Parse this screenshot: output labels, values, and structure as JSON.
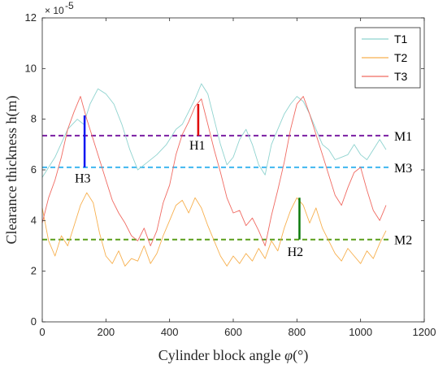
{
  "chart_data": {
    "type": "line",
    "xlabel_text": "Cylinder block angle ",
    "xlabel_symbol": "φ",
    "xlabel_unit": "(°)",
    "ylabel": "Clearance thickness h(m)",
    "y_exponent_base": "× 10",
    "y_exponent_power": "-5",
    "xlim": [
      0,
      1200
    ],
    "ylim": [
      0,
      12
    ],
    "xticks": [
      "0",
      "200",
      "400",
      "600",
      "800",
      "1000",
      "1200"
    ],
    "yticks": [
      "0",
      "2",
      "4",
      "6",
      "8",
      "10",
      "12"
    ],
    "grid": false,
    "legend_placement": "top-right",
    "series": [
      {
        "name": "T1",
        "color": "#8fd3cf",
        "x": [
          0,
          40,
          80,
          110,
          130,
          150,
          175,
          200,
          225,
          250,
          275,
          300,
          330,
          360,
          390,
          420,
          440,
          460,
          480,
          500,
          520,
          540,
          560,
          580,
          600,
          620,
          640,
          660,
          680,
          700,
          720,
          740,
          760,
          780,
          800,
          820,
          840,
          860,
          880,
          900,
          920,
          940,
          960,
          980,
          1000,
          1020,
          1040,
          1060,
          1080
        ],
        "y": [
          5.7,
          6.5,
          7.6,
          8.0,
          7.8,
          8.6,
          9.2,
          9.0,
          8.6,
          7.8,
          6.8,
          6.0,
          6.3,
          6.6,
          7.0,
          7.6,
          7.8,
          8.3,
          8.8,
          9.4,
          9.0,
          8.0,
          7.0,
          6.2,
          6.5,
          7.2,
          7.6,
          7.0,
          6.2,
          5.8,
          7.0,
          7.6,
          8.2,
          8.6,
          8.9,
          8.7,
          8.2,
          7.6,
          7.0,
          6.8,
          6.4,
          6.5,
          6.6,
          7.0,
          6.6,
          6.4,
          6.8,
          7.2,
          6.8
        ]
      },
      {
        "name": "T2",
        "color": "#f7b04f",
        "x": [
          0,
          20,
          40,
          60,
          80,
          100,
          120,
          140,
          160,
          180,
          200,
          220,
          240,
          260,
          280,
          300,
          320,
          340,
          360,
          380,
          400,
          420,
          440,
          460,
          480,
          500,
          520,
          540,
          560,
          580,
          600,
          620,
          640,
          660,
          680,
          700,
          720,
          740,
          760,
          780,
          800,
          820,
          840,
          860,
          880,
          900,
          920,
          940,
          960,
          980,
          1000,
          1020,
          1040,
          1060,
          1080
        ],
        "y": [
          4.5,
          3.2,
          2.6,
          3.4,
          3.0,
          3.8,
          4.6,
          5.1,
          4.7,
          3.5,
          2.6,
          2.3,
          2.8,
          2.2,
          2.5,
          2.4,
          3.0,
          2.3,
          2.7,
          3.4,
          4.0,
          4.6,
          4.8,
          4.3,
          4.9,
          4.5,
          3.8,
          3.2,
          2.6,
          2.2,
          2.6,
          2.3,
          2.7,
          2.4,
          2.9,
          2.5,
          3.2,
          2.8,
          3.7,
          4.4,
          4.9,
          4.6,
          3.9,
          4.5,
          3.7,
          3.2,
          2.7,
          2.4,
          2.9,
          2.6,
          2.3,
          2.8,
          2.5,
          3.1,
          3.6
        ]
      },
      {
        "name": "T3",
        "color": "#f06a62",
        "x": [
          0,
          20,
          40,
          60,
          80,
          100,
          120,
          140,
          160,
          180,
          200,
          220,
          240,
          260,
          280,
          300,
          320,
          340,
          360,
          380,
          400,
          420,
          440,
          460,
          480,
          500,
          520,
          540,
          560,
          580,
          600,
          620,
          640,
          660,
          680,
          700,
          720,
          740,
          760,
          780,
          800,
          820,
          840,
          860,
          880,
          900,
          920,
          940,
          960,
          980,
          1000,
          1020,
          1040,
          1060,
          1080
        ],
        "y": [
          3.9,
          4.9,
          5.6,
          6.5,
          7.6,
          8.3,
          8.9,
          8.0,
          7.2,
          6.4,
          5.6,
          4.8,
          4.3,
          3.9,
          3.4,
          3.2,
          3.7,
          3.0,
          3.6,
          4.7,
          5.4,
          6.6,
          7.4,
          7.9,
          8.5,
          8.8,
          7.8,
          6.8,
          5.9,
          4.9,
          4.3,
          4.4,
          3.8,
          4.1,
          3.6,
          3.0,
          4.2,
          5.2,
          6.3,
          7.6,
          8.6,
          8.9,
          8.2,
          7.4,
          6.6,
          5.8,
          5.0,
          4.6,
          5.3,
          5.9,
          6.1,
          5.2,
          4.4,
          4.0,
          4.6
        ]
      }
    ],
    "reference_lines": [
      {
        "label": "M1",
        "y": 7.35,
        "color": "#7b1fa2",
        "style": "dashed"
      },
      {
        "label": "M3",
        "y": 6.1,
        "color": "#3fb6ef",
        "style": "dashed"
      },
      {
        "label": "M2",
        "y": 3.25,
        "color": "#5a9e1a",
        "style": "dashed"
      }
    ],
    "annotations": [
      {
        "label": "H1",
        "x": 490,
        "y_from": 7.35,
        "y_to": 8.6,
        "color": "#e00000",
        "label_x": 462,
        "label_y": 6.8
      },
      {
        "label": "H2",
        "x": 808,
        "y_from": 3.25,
        "y_to": 4.9,
        "color": "#0b7a0b",
        "label_x": 770,
        "label_y": 2.6
      },
      {
        "label": "H3",
        "x": 133,
        "y_from": 6.1,
        "y_to": 8.15,
        "color": "#0a16f2",
        "label_x": 102,
        "label_y": 5.5
      }
    ]
  }
}
